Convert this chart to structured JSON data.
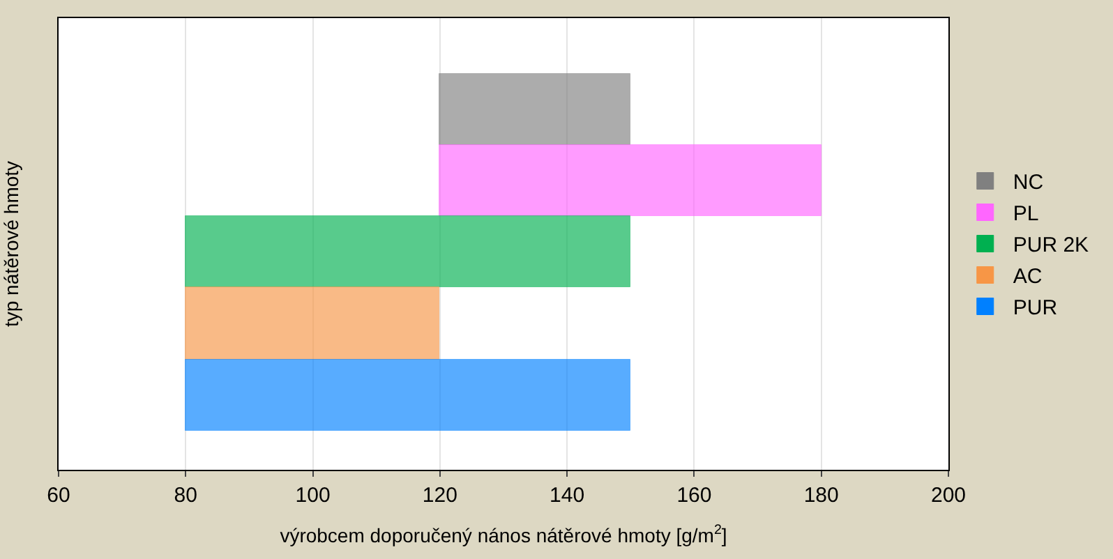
{
  "chart_data": {
    "type": "bar",
    "orientation": "horizontal",
    "xlabel": "výrobcem doporučený nános nátěrové hmoty [g/m$^{2}$]",
    "ylabel": "typ nátěrové hmoty",
    "categories": [
      null,
      null,
      null,
      null,
      null
    ],
    "series": [
      {
        "name": "NC",
        "color": "#808080",
        "values": [
          30,
          null,
          null,
          null,
          null
        ],
        "base": [
          120,
          null,
          null,
          null,
          null
        ]
      },
      {
        "name": "PL",
        "color": "#ff66ff",
        "values": [
          null,
          60,
          null,
          null,
          null
        ],
        "base": [
          null,
          120,
          null,
          null,
          null
        ]
      },
      {
        "name": "PUR 2K",
        "color": "#00b050",
        "values": [
          null,
          null,
          70,
          null,
          null
        ],
        "base": [
          null,
          null,
          80,
          null,
          null
        ]
      },
      {
        "name": "AC",
        "color": "#f79646",
        "values": [
          null,
          null,
          null,
          40,
          null
        ],
        "base": [
          null,
          null,
          null,
          80,
          null
        ]
      },
      {
        "name": "PUR",
        "color": "#0080ff",
        "values": [
          null,
          null,
          null,
          null,
          70
        ],
        "base": [
          null,
          null,
          null,
          null,
          80
        ]
      }
    ],
    "xlim": [
      60,
      200
    ],
    "xticks": [
      60,
      80,
      100,
      120,
      140,
      160,
      180,
      200
    ],
    "grid": "x",
    "legend": "right",
    "tick_labels": "x"
  }
}
